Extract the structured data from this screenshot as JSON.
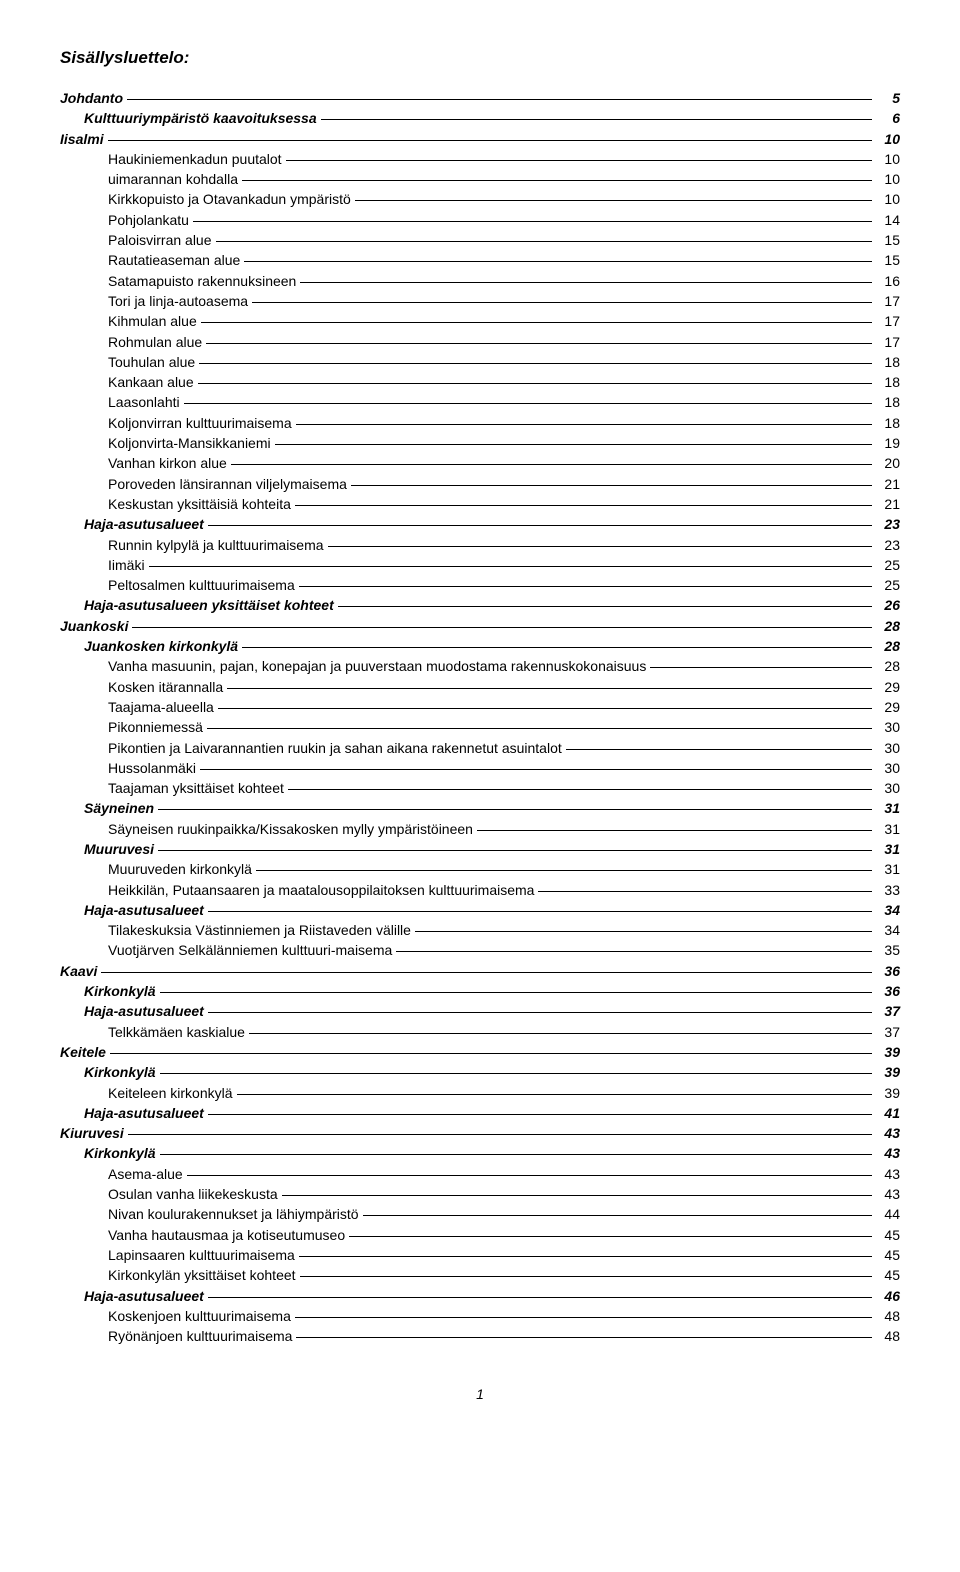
{
  "title": "Sisällysluettelo:",
  "page_number": "1",
  "entries": [
    {
      "level": 0,
      "label": "Johdanto",
      "page": "5"
    },
    {
      "level": 1,
      "label": "Kulttuuriympäristö kaavoituksessa",
      "page": "6"
    },
    {
      "level": 0,
      "label": "Iisalmi",
      "page": "10"
    },
    {
      "level": 2,
      "label": "Haukiniemenkadun puutalot",
      "page": "10"
    },
    {
      "level": 2,
      "label": "uimarannan kohdalla",
      "page": "10"
    },
    {
      "level": 2,
      "label": "Kirkkopuisto ja Otavankadun ympäristö",
      "page": "10"
    },
    {
      "level": 2,
      "label": "Pohjolankatu",
      "page": "14"
    },
    {
      "level": 2,
      "label": "Paloisvirran alue",
      "page": "15"
    },
    {
      "level": 2,
      "label": "Rautatieaseman alue",
      "page": "15"
    },
    {
      "level": 2,
      "label": "Satamapuisto rakennuksineen",
      "page": "16"
    },
    {
      "level": 2,
      "label": "Tori ja linja-autoasema",
      "page": "17"
    },
    {
      "level": 2,
      "label": "Kihmulan alue",
      "page": "17"
    },
    {
      "level": 2,
      "label": "Rohmulan alue",
      "page": "17"
    },
    {
      "level": 2,
      "label": "Touhulan alue",
      "page": "18"
    },
    {
      "level": 2,
      "label": "Kankaan alue",
      "page": "18"
    },
    {
      "level": 2,
      "label": "Laasonlahti",
      "page": "18"
    },
    {
      "level": 2,
      "label": "Koljonvirran kulttuurimaisema",
      "page": "18"
    },
    {
      "level": 2,
      "label": "Koljonvirta-Mansikkaniemi",
      "page": "19"
    },
    {
      "level": 2,
      "label": "Vanhan kirkon alue",
      "page": "20"
    },
    {
      "level": 2,
      "label": "Poroveden länsirannan viljelymaisema",
      "page": "21"
    },
    {
      "level": 2,
      "label": "Keskustan yksittäisiä kohteita",
      "page": "21"
    },
    {
      "level": 1,
      "label": "Haja-asutusalueet",
      "page": "23"
    },
    {
      "level": 2,
      "label": "Runnin kylpylä ja kulttuurimaisema",
      "page": "23"
    },
    {
      "level": 2,
      "label": "Iimäki",
      "page": "25"
    },
    {
      "level": 2,
      "label": "Peltosalmen kulttuurimaisema",
      "page": "25"
    },
    {
      "level": 1,
      "label": "Haja-asutusalueen yksittäiset kohteet",
      "page": "26"
    },
    {
      "level": 0,
      "label": "Juankoski",
      "page": "28"
    },
    {
      "level": 1,
      "label": "Juankosken kirkonkylä",
      "page": "28"
    },
    {
      "level": 2,
      "label": "Vanha masuunin, pajan, konepajan ja puuverstaan muodostama rakennuskokonaisuus",
      "page": "28"
    },
    {
      "level": 2,
      "label": "Kosken itärannalla",
      "page": "29"
    },
    {
      "level": 2,
      "label": "Taajama-alueella",
      "page": "29"
    },
    {
      "level": 2,
      "label": "Pikonniemessä",
      "page": "30"
    },
    {
      "level": 2,
      "label": "Pikontien ja Laivarannantien ruukin ja sahan aikana rakennetut asuintalot",
      "page": "30"
    },
    {
      "level": 2,
      "label": "Hussolanmäki",
      "page": "30"
    },
    {
      "level": 2,
      "label": "Taajaman yksittäiset kohteet",
      "page": "30"
    },
    {
      "level": 1,
      "label": "Säyneinen",
      "page": "31"
    },
    {
      "level": 2,
      "label": "Säyneisen ruukinpaikka/Kissakosken mylly ympäristöineen",
      "page": "31"
    },
    {
      "level": 1,
      "label": "Muuruvesi",
      "page": "31"
    },
    {
      "level": 2,
      "label": "Muuruveden kirkonkylä",
      "page": "31"
    },
    {
      "level": 2,
      "label": "Heikkilän, Putaansaaren ja maatalousoppilaitoksen kulttuurimaisema",
      "page": "33"
    },
    {
      "level": 1,
      "label": "Haja-asutusalueet",
      "page": "34"
    },
    {
      "level": 2,
      "label": "Tilakeskuksia Västinniemen ja Riistaveden välille",
      "page": "34"
    },
    {
      "level": 2,
      "label": "Vuotjärven Selkälänniemen kulttuuri-maisema",
      "page": "35"
    },
    {
      "level": 0,
      "label": "Kaavi",
      "page": "36"
    },
    {
      "level": 1,
      "label": "Kirkonkylä",
      "page": "36"
    },
    {
      "level": 1,
      "label": "Haja-asutusalueet",
      "page": "37"
    },
    {
      "level": 2,
      "label": "Telkkämäen kaskialue",
      "page": "37"
    },
    {
      "level": 0,
      "label": "Keitele",
      "page": "39"
    },
    {
      "level": 1,
      "label": "Kirkonkylä",
      "page": "39"
    },
    {
      "level": 2,
      "label": "Keiteleen kirkonkylä",
      "page": "39"
    },
    {
      "level": 1,
      "label": "Haja-asutusalueet",
      "page": "41"
    },
    {
      "level": 0,
      "label": "Kiuruvesi",
      "page": "43"
    },
    {
      "level": 1,
      "label": "Kirkonkylä",
      "page": "43"
    },
    {
      "level": 2,
      "label": "Asema-alue",
      "page": "43"
    },
    {
      "level": 2,
      "label": "Osulan vanha liikekeskusta",
      "page": "43"
    },
    {
      "level": 2,
      "label": "Nivan koulurakennukset ja lähiympäristö",
      "page": "44"
    },
    {
      "level": 2,
      "label": "Vanha hautausmaa ja kotiseutumuseo",
      "page": "45"
    },
    {
      "level": 2,
      "label": "Lapinsaaren kulttuurimaisema",
      "page": "45"
    },
    {
      "level": 2,
      "label": "Kirkonkylän yksittäiset kohteet",
      "page": "45"
    },
    {
      "level": 1,
      "label": "Haja-asutusalueet",
      "page": "46"
    },
    {
      "level": 2,
      "label": "Koskenjoen kulttuurimaisema",
      "page": "48"
    },
    {
      "level": 2,
      "label": "Ryönänjoen kulttuurimaisema",
      "page": "48"
    }
  ]
}
